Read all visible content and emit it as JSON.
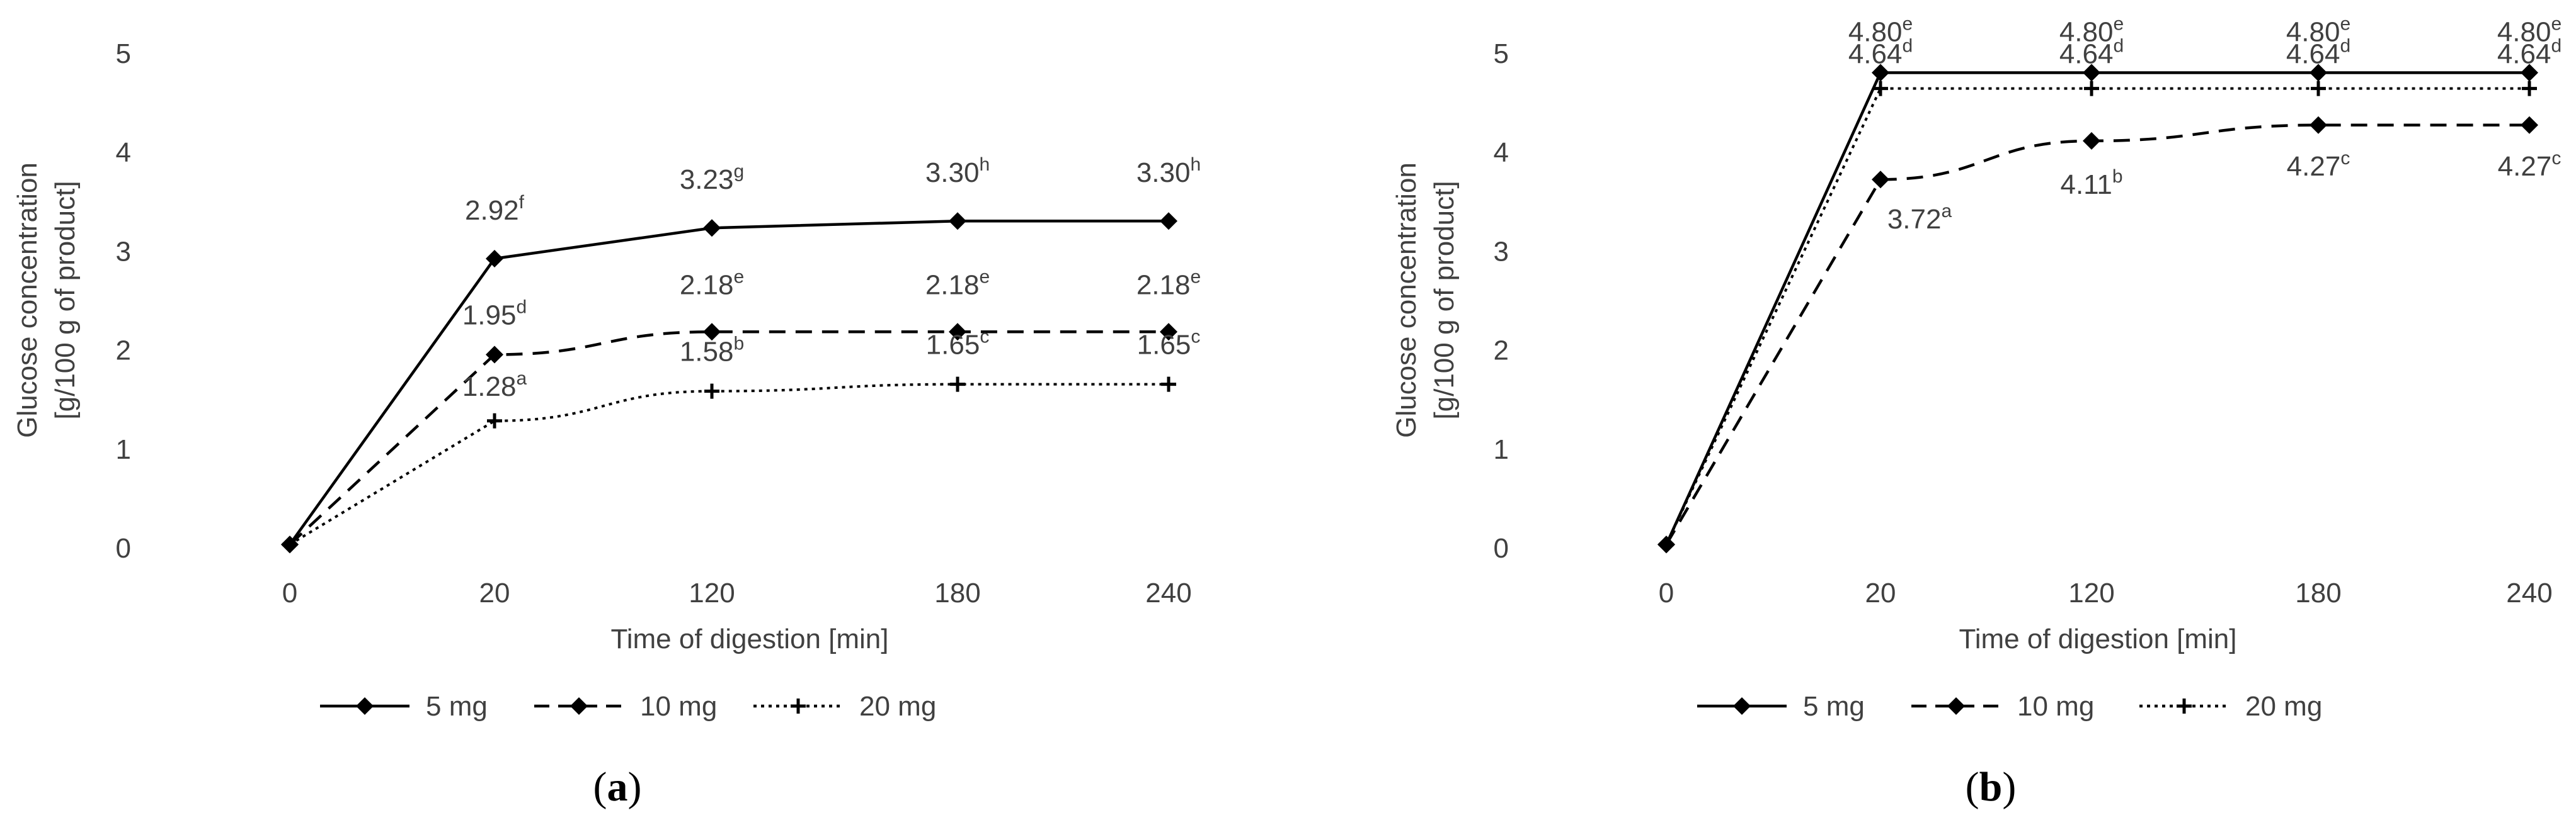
{
  "chart_data": [
    {
      "type": "line",
      "panel_label": "a",
      "categories": [
        "0",
        "20",
        "120",
        "180",
        "240"
      ],
      "xlabel": "Time of digestion [min]",
      "ylabel": [
        "Glucose concentration",
        "[g/100 g of product]"
      ],
      "ylim": [
        0,
        5
      ],
      "yticks": [
        "0",
        "1",
        "2",
        "3",
        "4",
        "5"
      ],
      "grid": false,
      "legend_position": "bottom",
      "series": [
        {
          "name": "5 mg",
          "style": "solid",
          "values": [
            0.03,
            2.92,
            3.23,
            3.3,
            3.3
          ],
          "labels": [
            null,
            {
              "v": "2.92",
              "s": "f"
            },
            {
              "v": "3.23",
              "s": "g"
            },
            {
              "v": "3.30",
              "s": "h"
            },
            {
              "v": "3.30",
              "s": "h"
            }
          ]
        },
        {
          "name": "10 mg",
          "style": "dashed",
          "values": [
            0.03,
            1.95,
            2.18,
            2.18,
            2.18
          ],
          "labels": [
            null,
            {
              "v": "1.95",
              "s": "d"
            },
            {
              "v": "2.18",
              "s": "e"
            },
            {
              "v": "2.18",
              "s": "e"
            },
            {
              "v": "2.18",
              "s": "e"
            }
          ]
        },
        {
          "name": "20 mg",
          "style": "dotted",
          "values": [
            0.03,
            1.28,
            1.58,
            1.65,
            1.65
          ],
          "labels": [
            null,
            {
              "v": "1.28",
              "s": "a"
            },
            {
              "v": "1.58",
              "s": "b"
            },
            {
              "v": "1.65",
              "s": "c"
            },
            {
              "v": "1.65",
              "s": "c"
            }
          ]
        }
      ]
    },
    {
      "type": "line",
      "panel_label": "b",
      "categories": [
        "0",
        "20",
        "120",
        "180",
        "240"
      ],
      "xlabel": "Time of digestion [min]",
      "ylabel": [
        "Glucose concentration",
        "[g/100 g of product]"
      ],
      "ylim": [
        0,
        5
      ],
      "yticks": [
        "0",
        "1",
        "2",
        "3",
        "4",
        "5"
      ],
      "grid": false,
      "legend_position": "bottom",
      "series": [
        {
          "name": "5 mg",
          "style": "solid",
          "values": [
            0.03,
            4.8,
            4.8,
            4.8,
            4.8
          ],
          "labels": [
            null,
            {
              "v": "4.80",
              "s": "e"
            },
            {
              "v": "4.80",
              "s": "e"
            },
            {
              "v": "4.80",
              "s": "e"
            },
            {
              "v": "4.80",
              "s": "e"
            }
          ]
        },
        {
          "name": "10 mg",
          "style": "dashed",
          "values": [
            0.03,
            3.72,
            4.11,
            4.27,
            4.27
          ],
          "labels": [
            null,
            {
              "v": "3.72",
              "s": "a"
            },
            {
              "v": "4.11",
              "s": "b"
            },
            {
              "v": "4.27",
              "s": "c"
            },
            {
              "v": "4.27",
              "s": "c"
            }
          ]
        },
        {
          "name": "20 mg",
          "style": "dotted",
          "values": [
            0.03,
            4.64,
            4.64,
            4.64,
            4.64
          ],
          "labels": [
            null,
            {
              "v": "4.64",
              "s": "d"
            },
            {
              "v": "4.64",
              "s": "d"
            },
            {
              "v": "4.64",
              "s": "d"
            },
            {
              "v": "4.64",
              "s": "d"
            }
          ]
        }
      ]
    }
  ]
}
